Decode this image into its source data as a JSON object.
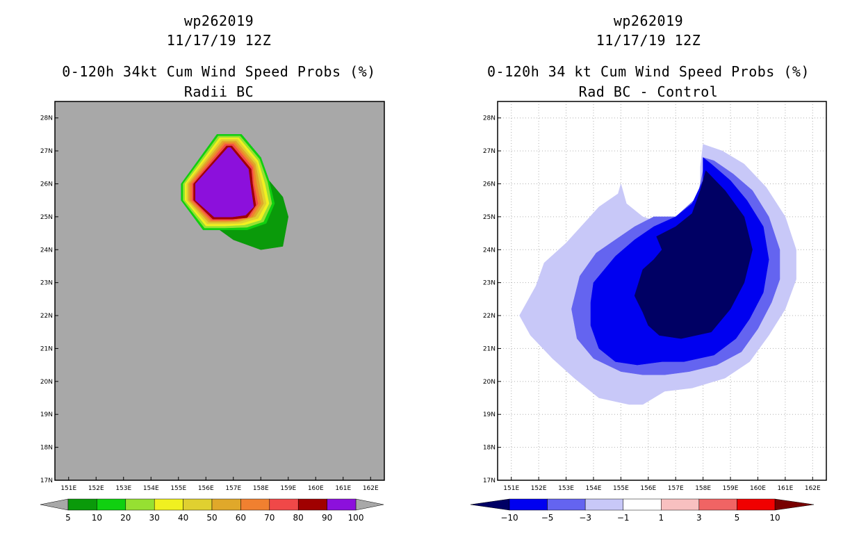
{
  "chart_data": [
    {
      "type": "heatmap",
      "storm_id": "wp262019",
      "datetime": "11/17/19 12Z",
      "title": "0-120h 34kt Cum Wind Speed Probs (%)",
      "subtitle": "Radii BC",
      "x_ticks": [
        "151E",
        "152E",
        "153E",
        "154E",
        "155E",
        "156E",
        "157E",
        "158E",
        "159E",
        "160E",
        "161E",
        "162E"
      ],
      "y_ticks": [
        "17N",
        "18N",
        "19N",
        "20N",
        "21N",
        "22N",
        "23N",
        "24N",
        "25N",
        "26N",
        "27N",
        "28N"
      ],
      "xlim": [
        150.5,
        162.5
      ],
      "ylim": [
        17,
        28.5
      ],
      "background": "#a8a8a8",
      "grid": false,
      "levels": [
        5,
        10,
        20,
        30,
        40,
        50,
        60,
        70,
        80,
        90,
        100
      ],
      "colors": [
        "#0a9a0a",
        "#10d010",
        "#96e032",
        "#f0f020",
        "#e0d030",
        "#e0a82a",
        "#f08030",
        "#f04848",
        "#a00000",
        "#8c10dc"
      ],
      "level_labels": [
        "5",
        "10",
        "20",
        "30",
        "40",
        "50",
        "60",
        "70",
        "80",
        "90",
        "100"
      ],
      "contours": [
        {
          "level": 5,
          "color": "#0a9a0a",
          "points": [
            [
              156.4,
              27.5
            ],
            [
              157.3,
              27.5
            ],
            [
              158.0,
              26.8
            ],
            [
              158.3,
              26.1
            ],
            [
              158.8,
              25.6
            ],
            [
              159.0,
              25.0
            ],
            [
              158.8,
              24.1
            ],
            [
              158.0,
              24.0
            ],
            [
              157.0,
              24.3
            ],
            [
              156.5,
              24.6
            ],
            [
              155.9,
              24.6
            ],
            [
              155.1,
              25.5
            ],
            [
              155.1,
              26.0
            ]
          ]
        },
        {
          "level": 10,
          "color": "#10d010",
          "points": [
            [
              156.4,
              27.5
            ],
            [
              157.3,
              27.5
            ],
            [
              158.0,
              26.8
            ],
            [
              158.3,
              26.1
            ],
            [
              158.5,
              25.4
            ],
            [
              158.2,
              24.8
            ],
            [
              157.5,
              24.6
            ],
            [
              156.7,
              24.6
            ],
            [
              155.9,
              24.6
            ],
            [
              155.1,
              25.5
            ],
            [
              155.1,
              26.0
            ]
          ]
        },
        {
          "level": 20,
          "color": "#96e032",
          "points": [
            [
              156.45,
              27.45
            ],
            [
              157.25,
              27.45
            ],
            [
              157.95,
              26.75
            ],
            [
              158.25,
              26.05
            ],
            [
              158.4,
              25.4
            ],
            [
              158.1,
              24.85
            ],
            [
              157.5,
              24.68
            ],
            [
              156.7,
              24.66
            ],
            [
              155.95,
              24.66
            ],
            [
              155.17,
              25.5
            ],
            [
              155.17,
              26.0
            ]
          ]
        },
        {
          "level": 30,
          "color": "#f0f020",
          "points": [
            [
              156.5,
              27.4
            ],
            [
              157.2,
              27.4
            ],
            [
              157.9,
              26.7
            ],
            [
              158.15,
              26.0
            ],
            [
              158.3,
              25.4
            ],
            [
              158.0,
              24.9
            ],
            [
              157.4,
              24.75
            ],
            [
              156.7,
              24.72
            ],
            [
              156.0,
              24.72
            ],
            [
              155.24,
              25.5
            ],
            [
              155.24,
              26.0
            ]
          ]
        },
        {
          "level": 40,
          "color": "#e0d030",
          "points": [
            [
              156.55,
              27.35
            ],
            [
              157.15,
              27.35
            ],
            [
              157.85,
              26.65
            ],
            [
              158.05,
              26.0
            ],
            [
              158.2,
              25.4
            ],
            [
              157.9,
              24.95
            ],
            [
              157.3,
              24.8
            ],
            [
              156.7,
              24.78
            ],
            [
              156.05,
              24.78
            ],
            [
              155.3,
              25.5
            ],
            [
              155.3,
              26.0
            ]
          ]
        },
        {
          "level": 50,
          "color": "#e0a82a",
          "points": [
            [
              156.6,
              27.3
            ],
            [
              157.1,
              27.3
            ],
            [
              157.8,
              26.6
            ],
            [
              157.95,
              26.0
            ],
            [
              158.1,
              25.4
            ],
            [
              157.8,
              25.0
            ],
            [
              157.2,
              24.85
            ],
            [
              156.7,
              24.83
            ],
            [
              156.1,
              24.83
            ],
            [
              155.36,
              25.5
            ],
            [
              155.36,
              26.0
            ]
          ]
        },
        {
          "level": 60,
          "color": "#f08030",
          "points": [
            [
              156.65,
              27.25
            ],
            [
              157.05,
              27.25
            ],
            [
              157.75,
              26.55
            ],
            [
              157.85,
              26.0
            ],
            [
              158.0,
              25.4
            ],
            [
              157.7,
              25.0
            ],
            [
              157.1,
              24.88
            ],
            [
              156.7,
              24.87
            ],
            [
              156.15,
              24.87
            ],
            [
              155.42,
              25.5
            ],
            [
              155.42,
              26.0
            ]
          ]
        },
        {
          "level": 70,
          "color": "#f04848",
          "points": [
            [
              156.7,
              27.2
            ],
            [
              157.0,
              27.2
            ],
            [
              157.7,
              26.5
            ],
            [
              157.75,
              26.0
            ],
            [
              157.9,
              25.4
            ],
            [
              157.6,
              25.0
            ],
            [
              157.0,
              24.9
            ],
            [
              156.2,
              24.9
            ],
            [
              155.5,
              25.5
            ],
            [
              155.5,
              26.0
            ]
          ]
        },
        {
          "level": 80,
          "color": "#a00000",
          "points": [
            [
              156.75,
              27.15
            ],
            [
              156.95,
              27.15
            ],
            [
              157.65,
              26.45
            ],
            [
              157.7,
              26.0
            ],
            [
              157.82,
              25.35
            ],
            [
              157.5,
              24.97
            ],
            [
              156.95,
              24.93
            ],
            [
              156.25,
              24.93
            ],
            [
              155.55,
              25.5
            ],
            [
              155.55,
              26.0
            ]
          ]
        },
        {
          "level": 90,
          "color": "#8c10dc",
          "points": [
            [
              156.8,
              27.1
            ],
            [
              156.9,
              27.1
            ],
            [
              157.55,
              26.45
            ],
            [
              157.62,
              26.0
            ],
            [
              157.74,
              25.3
            ],
            [
              157.45,
              25.05
            ],
            [
              156.95,
              24.99
            ],
            [
              156.3,
              24.99
            ],
            [
              155.62,
              25.5
            ],
            [
              155.62,
              26.0
            ]
          ]
        }
      ]
    },
    {
      "type": "heatmap",
      "storm_id": "wp262019",
      "datetime": "11/17/19 12Z",
      "title": "0-120h 34 kt Cum Wind Speed Probs (%)",
      "subtitle": "Rad BC - Control",
      "x_ticks": [
        "151E",
        "152E",
        "153E",
        "154E",
        "155E",
        "156E",
        "157E",
        "158E",
        "159E",
        "160E",
        "161E",
        "162E"
      ],
      "y_ticks": [
        "17N",
        "18N",
        "19N",
        "20N",
        "21N",
        "22N",
        "23N",
        "24N",
        "25N",
        "26N",
        "27N",
        "28N"
      ],
      "xlim": [
        150.5,
        162.5
      ],
      "ylim": [
        17,
        28.5
      ],
      "background": "#ffffff",
      "grid": true,
      "levels": [
        -10,
        -5,
        -3,
        -1,
        1,
        3,
        5,
        10
      ],
      "colors": [
        "#000064",
        "#0000f0",
        "#6464f0",
        "#c8c8f8",
        "#ffffff",
        "#f8c0c0",
        "#f06464",
        "#f00000",
        "#780000"
      ],
      "level_labels": [
        "-10",
        "-5",
        "-3",
        "-1",
        "1",
        "3",
        "5",
        "10"
      ],
      "contours": [
        {
          "level": -1,
          "color": "#c8c8f8",
          "points": [
            [
              158.0,
              27.2
            ],
            [
              158.7,
              27.0
            ],
            [
              159.5,
              26.6
            ],
            [
              160.3,
              25.9
            ],
            [
              161.0,
              25.0
            ],
            [
              161.4,
              24.0
            ],
            [
              161.4,
              23.1
            ],
            [
              161.0,
              22.2
            ],
            [
              160.4,
              21.4
            ],
            [
              159.7,
              20.6
            ],
            [
              158.8,
              20.1
            ],
            [
              157.6,
              19.8
            ],
            [
              156.6,
              19.7
            ],
            [
              155.8,
              19.3
            ],
            [
              155.3,
              19.3
            ],
            [
              154.2,
              19.5
            ],
            [
              153.3,
              20.1
            ],
            [
              152.5,
              20.7
            ],
            [
              151.7,
              21.4
            ],
            [
              151.3,
              22.0
            ],
            [
              151.9,
              22.9
            ],
            [
              152.2,
              23.6
            ],
            [
              153.0,
              24.2
            ],
            [
              154.2,
              25.3
            ],
            [
              154.9,
              25.7
            ],
            [
              155.0,
              26.0
            ],
            [
              155.2,
              25.4
            ],
            [
              155.8,
              25.0
            ],
            [
              156.5,
              24.8
            ],
            [
              157.0,
              25.0
            ],
            [
              157.6,
              25.3
            ],
            [
              157.9,
              25.8
            ],
            [
              157.9,
              26.5
            ]
          ]
        },
        {
          "level": -3,
          "color": "#6464f0",
          "points": [
            [
              158.0,
              26.8
            ],
            [
              158.4,
              26.7
            ],
            [
              159.1,
              26.3
            ],
            [
              159.8,
              25.8
            ],
            [
              160.4,
              25.0
            ],
            [
              160.8,
              24.0
            ],
            [
              160.8,
              23.1
            ],
            [
              160.5,
              22.4
            ],
            [
              160.0,
              21.6
            ],
            [
              159.4,
              20.9
            ],
            [
              158.5,
              20.5
            ],
            [
              157.5,
              20.3
            ],
            [
              156.6,
              20.2
            ],
            [
              155.8,
              20.2
            ],
            [
              155.0,
              20.3
            ],
            [
              154.0,
              20.7
            ],
            [
              153.4,
              21.3
            ],
            [
              153.2,
              22.2
            ],
            [
              153.5,
              23.2
            ],
            [
              154.1,
              23.9
            ],
            [
              154.8,
              24.3
            ],
            [
              155.5,
              24.7
            ],
            [
              156.2,
              25.0
            ],
            [
              157.0,
              25.0
            ],
            [
              157.8,
              25.6
            ],
            [
              158.0,
              26.4
            ]
          ]
        },
        {
          "level": -5,
          "color": "#0000f0",
          "points": [
            [
              158.0,
              26.8
            ],
            [
              158.3,
              26.6
            ],
            [
              159.0,
              26.1
            ],
            [
              159.6,
              25.5
            ],
            [
              160.2,
              24.7
            ],
            [
              160.4,
              23.7
            ],
            [
              160.2,
              22.7
            ],
            [
              159.7,
              21.9
            ],
            [
              159.2,
              21.3
            ],
            [
              158.4,
              20.8
            ],
            [
              157.3,
              20.6
            ],
            [
              156.5,
              20.6
            ],
            [
              155.6,
              20.5
            ],
            [
              154.8,
              20.6
            ],
            [
              154.2,
              21.0
            ],
            [
              153.9,
              21.7
            ],
            [
              153.9,
              22.4
            ],
            [
              154.0,
              23.0
            ],
            [
              154.8,
              23.8
            ],
            [
              155.5,
              24.3
            ],
            [
              156.2,
              24.7
            ],
            [
              157.0,
              25.0
            ],
            [
              157.6,
              25.4
            ],
            [
              158.0,
              26.1
            ]
          ]
        },
        {
          "level": -10,
          "color": "#000064",
          "points": [
            [
              158.1,
              26.4
            ],
            [
              158.8,
              25.8
            ],
            [
              159.5,
              25.0
            ],
            [
              159.8,
              24.0
            ],
            [
              159.5,
              23.0
            ],
            [
              159.0,
              22.2
            ],
            [
              158.3,
              21.5
            ],
            [
              157.2,
              21.3
            ],
            [
              156.4,
              21.4
            ],
            [
              156.0,
              21.7
            ],
            [
              155.8,
              22.1
            ],
            [
              155.5,
              22.6
            ],
            [
              155.8,
              23.4
            ],
            [
              156.2,
              23.7
            ],
            [
              156.5,
              24.0
            ],
            [
              156.3,
              24.4
            ],
            [
              157.0,
              24.7
            ],
            [
              157.6,
              25.1
            ],
            [
              157.9,
              25.8
            ]
          ]
        }
      ]
    }
  ]
}
